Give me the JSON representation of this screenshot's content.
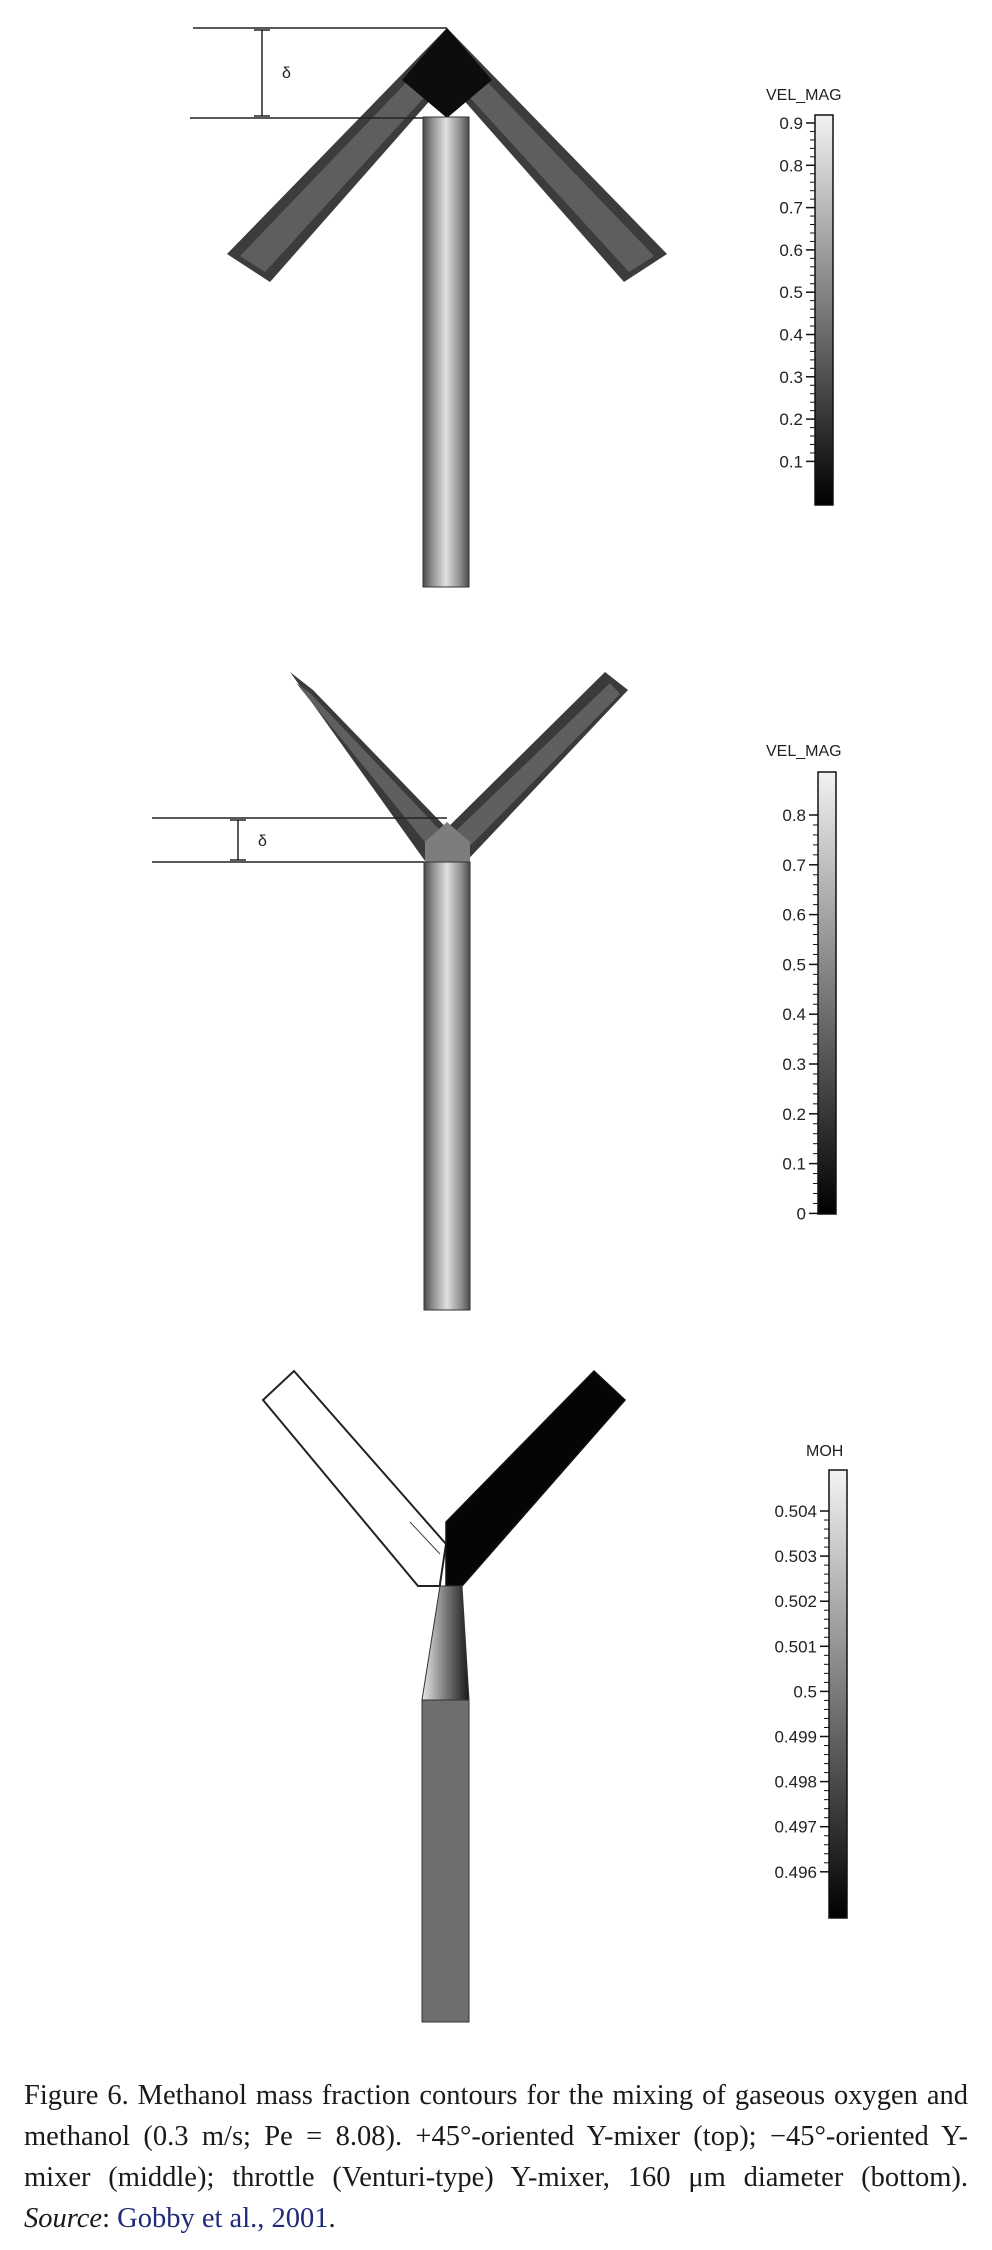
{
  "panels": {
    "top": {
      "delta_label": "δ",
      "legend_title": "VEL_MAG",
      "ticks": [
        "0.9",
        "0.8",
        "0.7",
        "0.6",
        "0.5",
        "0.4",
        "0.3",
        "0.2",
        "0.1"
      ]
    },
    "middle": {
      "delta_label": "δ",
      "legend_title": "VEL_MAG",
      "ticks": [
        "0.8",
        "0.7",
        "0.6",
        "0.5",
        "0.4",
        "0.3",
        "0.2",
        "0.1",
        "0"
      ]
    },
    "bottom": {
      "legend_title": "MOH",
      "ticks": [
        "0.504",
        "0.503",
        "0.502",
        "0.501",
        "0.5",
        "0.499",
        "0.498",
        "0.497",
        "0.496"
      ]
    }
  },
  "caption": {
    "text": "Figure 6. Methanol mass fraction contours for the mixing of gaseous oxygen and methanol (0.3 m/s; Pe = 8.08). +45°-oriented Y-mixer (top); −45°-oriented Y-mixer (middle); throttle (Venturi-type) Y-mixer, 160 μm diameter (bottom).",
    "source_label": "Source",
    "citation": "Gobby et al., 2001",
    "end": "."
  },
  "colors": {
    "citation": "#1f2a78",
    "channel_dark": "#3a3a3a",
    "core_light": "#d6d6d6"
  }
}
